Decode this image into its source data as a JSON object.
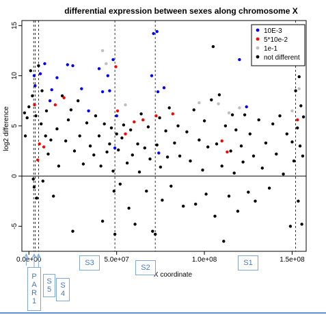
{
  "chart_data": {
    "type": "scatter",
    "title": "differential expression between sexes along chromosome X",
    "xlabel": "X coordinate",
    "ylabel": "log2 difference",
    "xlim": [
      -4000000,
      158000000
    ],
    "ylim": [
      -7.5,
      15.5
    ],
    "x_ticks": [
      0,
      50000000,
      100000000,
      150000000
    ],
    "x_tick_labels": [
      "0.0e+00",
      "5.0e+07",
      "1.0e+08",
      "1.5e+08"
    ],
    "y_ticks": [
      -5,
      0,
      5,
      10,
      15
    ],
    "y_tick_labels": [
      "-5",
      "0",
      "5",
      "10",
      "15"
    ],
    "hline": 0,
    "boundary_lines_x": [
      2700000,
      3600000,
      5500000,
      49000000,
      72000000,
      152000000
    ],
    "legend": {
      "position": "top-right",
      "entries": [
        {
          "label": "10E-3",
          "color": "#0000ff"
        },
        {
          "label": "5*10e-2",
          "color": "#ff0000"
        },
        {
          "label": "1e-1",
          "color": "#bebebe"
        },
        {
          "label": "not different",
          "color": "#000000"
        }
      ]
    },
    "series": [
      {
        "name": "10E-3",
        "color": "#0000ff",
        "points": [
          [
            3000000,
            10.0
          ],
          [
            3500000,
            9.0
          ],
          [
            6500000,
            10.2
          ],
          [
            9000000,
            11.2
          ],
          [
            12000000,
            7.5
          ],
          [
            13000000,
            8.6
          ],
          [
            16000000,
            9.8
          ],
          [
            22000000,
            11.1
          ],
          [
            25000000,
            11.0
          ],
          [
            30000000,
            8.7
          ],
          [
            34000000,
            6.5
          ],
          [
            40000000,
            10.7
          ],
          [
            42000000,
            8.4
          ],
          [
            45000000,
            10.0
          ],
          [
            46000000,
            8.5
          ],
          [
            48000000,
            11.6
          ],
          [
            49000000,
            2.8
          ],
          [
            50000000,
            6.0
          ],
          [
            70000000,
            10.0
          ],
          [
            71000000,
            14.2
          ],
          [
            73000000,
            14.4
          ],
          [
            73500000,
            8.4
          ],
          [
            74000000,
            2.3
          ],
          [
            77000000,
            8.8
          ],
          [
            120000000,
            11.6
          ],
          [
            124000000,
            6.9
          ]
        ]
      },
      {
        "name": "5*10e-2",
        "color": "#ff0000",
        "points": [
          [
            3200000,
            7.1
          ],
          [
            5000000,
            1.6
          ],
          [
            6000000,
            3.2
          ],
          [
            8500000,
            2.9
          ],
          [
            15000000,
            7.1
          ],
          [
            20000000,
            7.8
          ],
          [
            49500000,
            10.9
          ],
          [
            50500000,
            6.5
          ],
          [
            55000000,
            4.2
          ],
          [
            60000000,
            5.4
          ],
          [
            65000000,
            5.6
          ],
          [
            72500000,
            6.0
          ],
          [
            82000000,
            6.2
          ],
          [
            110000000,
            3.5
          ],
          [
            113000000,
            2.4
          ],
          [
            153000000,
            5.6
          ]
        ]
      },
      {
        "name": "1e-1",
        "color": "#bebebe",
        "points": [
          [
            42000000,
            12.5
          ],
          [
            44000000,
            11.2
          ],
          [
            55000000,
            7.1
          ],
          [
            97000000,
            7.3
          ],
          [
            108000000,
            7.2
          ],
          [
            114000000,
            6.3
          ],
          [
            120000000,
            6.8
          ],
          [
            150000000,
            6.5
          ],
          [
            154000000,
            8.7
          ]
        ]
      },
      {
        "name": "not different",
        "color": "#000000",
        "points": [
          [
            -2500000,
            6.3
          ],
          [
            -2000000,
            4.0
          ],
          [
            -1000000,
            5.8
          ],
          [
            0,
            6.9
          ],
          [
            1000000,
            10.5
          ],
          [
            2000000,
            8.0
          ],
          [
            2500000,
            -0.3
          ],
          [
            3000000,
            -1.1
          ],
          [
            4000000,
            6.0
          ],
          [
            4500000,
            -2.2
          ],
          [
            5500000,
            11.0
          ],
          [
            7000000,
            5.2
          ],
          [
            7500000,
            8.5
          ],
          [
            8000000,
            -0.5
          ],
          [
            9500000,
            4.0
          ],
          [
            10000000,
            6.5
          ],
          [
            11000000,
            2.2
          ],
          [
            12500000,
            3.6
          ],
          [
            14000000,
            -2.0
          ],
          [
            16000000,
            4.7
          ],
          [
            17000000,
            1.0
          ],
          [
            19000000,
            8.0
          ],
          [
            21000000,
            3.5
          ],
          [
            22500000,
            5.6
          ],
          [
            24000000,
            6.6
          ],
          [
            25000000,
            -5.5
          ],
          [
            26000000,
            2.5
          ],
          [
            28000000,
            7.5
          ],
          [
            29000000,
            4.0
          ],
          [
            31000000,
            1.2
          ],
          [
            33000000,
            5.3
          ],
          [
            35000000,
            3.0
          ],
          [
            37000000,
            2.1
          ],
          [
            38000000,
            6.0
          ],
          [
            40000000,
            4.0
          ],
          [
            41000000,
            1.0
          ],
          [
            42000000,
            -4.5
          ],
          [
            43000000,
            5.2
          ],
          [
            44500000,
            2.4
          ],
          [
            46000000,
            3.2
          ],
          [
            47000000,
            4.8
          ],
          [
            48000000,
            0.5
          ],
          [
            48500000,
            -1.5
          ],
          [
            49000000,
            -5.8
          ],
          [
            50000000,
            4.2
          ],
          [
            51000000,
            2.6
          ],
          [
            52000000,
            -0.8
          ],
          [
            53000000,
            3.8
          ],
          [
            54000000,
            5.1
          ],
          [
            56000000,
            1.3
          ],
          [
            57000000,
            -3.2
          ],
          [
            58000000,
            4.6
          ],
          [
            59000000,
            2.1
          ],
          [
            60500000,
            -4.8
          ],
          [
            62000000,
            3.2
          ],
          [
            63000000,
            0.4
          ],
          [
            64000000,
            6.2
          ],
          [
            66000000,
            2.8
          ],
          [
            67000000,
            -1.5
          ],
          [
            68000000,
            4.9
          ],
          [
            69000000,
            1.7
          ],
          [
            70500000,
            -5.5
          ],
          [
            72000000,
            -5.8
          ],
          [
            73000000,
            3.1
          ],
          [
            74500000,
            5.8
          ],
          [
            75000000,
            0.9
          ],
          [
            76000000,
            -2.4
          ],
          [
            78000000,
            4.5
          ],
          [
            79000000,
            1.9
          ],
          [
            80000000,
            6.8
          ],
          [
            81000000,
            -1.0
          ],
          [
            83000000,
            3.3
          ],
          [
            85000000,
            5.0
          ],
          [
            86000000,
            2.0
          ],
          [
            88000000,
            -3.0
          ],
          [
            90000000,
            4.4
          ],
          [
            92000000,
            1.5
          ],
          [
            94000000,
            6.6
          ],
          [
            95000000,
            -2.8
          ],
          [
            97000000,
            3.6
          ],
          [
            99000000,
            0.6
          ],
          [
            100000000,
            5.5
          ],
          [
            101000000,
            -1.8
          ],
          [
            102000000,
            2.9
          ],
          [
            104000000,
            7.6
          ],
          [
            105000000,
            12.9
          ],
          [
            106000000,
            -4.0
          ],
          [
            107000000,
            3.2
          ],
          [
            108500000,
            8.1
          ],
          [
            110000000,
            1.0
          ],
          [
            111000000,
            -6.5
          ],
          [
            112000000,
            5.0
          ],
          [
            114000000,
            -2.0
          ],
          [
            115000000,
            2.5
          ],
          [
            116000000,
            6.1
          ],
          [
            117000000,
            0.3
          ],
          [
            118000000,
            4.6
          ],
          [
            119000000,
            -3.5
          ],
          [
            121000000,
            3.0
          ],
          [
            122000000,
            1.4
          ],
          [
            123000000,
            6.1
          ],
          [
            125000000,
            -1.6
          ],
          [
            126000000,
            4.2
          ],
          [
            128000000,
            2.0
          ],
          [
            129000000,
            -2.5
          ],
          [
            131000000,
            5.6
          ],
          [
            133000000,
            0.8
          ],
          [
            135000000,
            3.3
          ],
          [
            137000000,
            -1.2
          ],
          [
            139000000,
            5.2
          ],
          [
            141000000,
            2.2
          ],
          [
            143000000,
            6.0
          ],
          [
            145000000,
            0.2
          ],
          [
            147000000,
            4.2
          ],
          [
            149000000,
            -5.0
          ],
          [
            150000000,
            3.4
          ],
          [
            151000000,
            1.5
          ],
          [
            152000000,
            8.5
          ],
          [
            153000000,
            4.8
          ],
          [
            153500000,
            -2.5
          ],
          [
            154000000,
            9.9
          ],
          [
            154500000,
            3.0
          ],
          [
            155000000,
            7.0
          ],
          [
            155500000,
            -4.8
          ],
          [
            156000000,
            2.0
          ],
          [
            156500000,
            5.9
          ]
        ]
      }
    ]
  },
  "annotations": {
    "par1": [
      "P",
      "A",
      "R",
      "1"
    ],
    "s5": [
      "S",
      "5"
    ],
    "s4": [
      "S",
      "4"
    ],
    "s3": "S3",
    "s2": "S2",
    "s1": "S1"
  }
}
